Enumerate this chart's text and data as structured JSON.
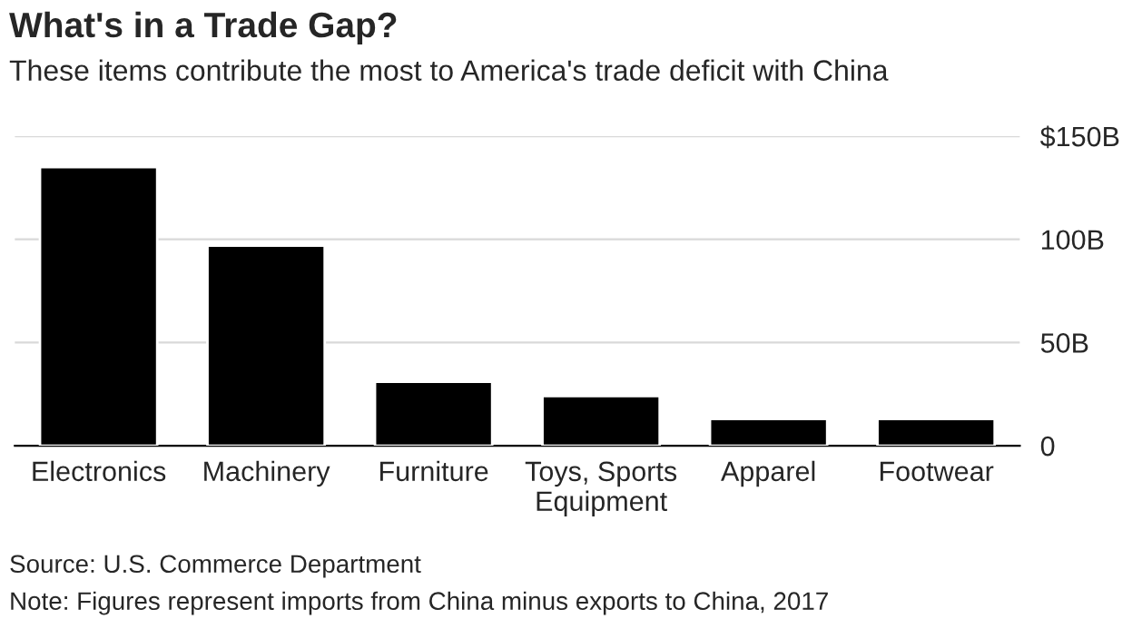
{
  "chart_data": {
    "type": "bar",
    "title": "What's in a Trade Gap?",
    "subtitle": "These items contribute the most to America's trade deficit with China",
    "categories": [
      "Electronics",
      "Machinery",
      "Furniture",
      "Toys, Sports\nEquipment",
      "Apparel",
      "Footwear"
    ],
    "values": [
      135,
      97,
      31,
      24,
      13,
      13
    ],
    "color": "#000000",
    "ylim": [
      0,
      150
    ],
    "yticks": [
      0,
      {
        "value": 50,
        "label": "50B"
      },
      {
        "value": 100,
        "label": "100B"
      },
      {
        "value": 150,
        "label": "$150B"
      }
    ],
    "grid": "y",
    "annotations": [
      "Source: U.S. Commerce Department",
      "Note: Figures represent imports from China minus exports to China, 2017"
    ]
  }
}
